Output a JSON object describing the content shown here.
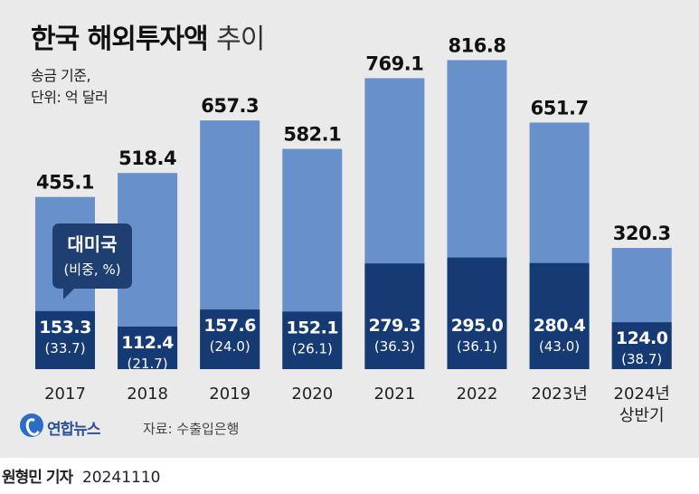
{
  "title": {
    "main": "한국 해외투자액",
    "suffix": "추이"
  },
  "subtitle": {
    "line1": "송금 기준,",
    "line2": "단위: 억 달러"
  },
  "callout": {
    "title": "대미국",
    "subtitle": "(비중, %)"
  },
  "source": {
    "logo": "연합뉴스",
    "text": "자료: 수출입은행"
  },
  "credit": {
    "reporter": "원형민 기자",
    "date": "20241110"
  },
  "colors": {
    "total": "#6890ca",
    "us": "#163a73",
    "background": "#eaeaea",
    "callout": "#1f3f72"
  },
  "chart_data": {
    "type": "bar",
    "categories": [
      "2017",
      "2018",
      "2019",
      "2020",
      "2021",
      "2022",
      "2023년",
      "2024년\n상반기"
    ],
    "series": [
      {
        "values": [
          455.1,
          518.4,
          657.3,
          582.1,
          769.1,
          816.8,
          651.7,
          320.3
        ],
        "labels": [
          "455.1",
          "518.4",
          "657.3",
          "582.1",
          "769.1",
          "816.8",
          "651.7",
          "320.3"
        ]
      },
      {
        "name": "대미국",
        "values": [
          153.3,
          112.4,
          157.6,
          152.1,
          279.3,
          295.0,
          280.4,
          124.0
        ],
        "labels": [
          "153.3",
          "112.4",
          "157.6",
          "152.1",
          "279.3",
          "295.0",
          "280.4",
          "124.0"
        ],
        "share_labels": [
          "(33.7)",
          "(21.7)",
          "(24.0)",
          "(26.1)",
          "(36.3)",
          "(36.1)",
          "(43.0)",
          "(38.7)"
        ]
      }
    ],
    "ylim": [
      0,
      880
    ],
    "grid": false,
    "legend": "callout"
  }
}
